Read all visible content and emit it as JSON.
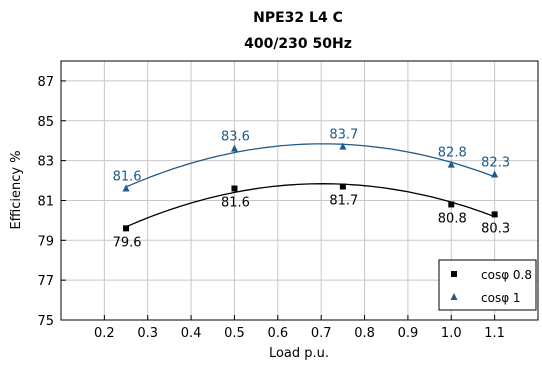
{
  "chart_data": {
    "type": "line",
    "title": "NPE32 L4 C",
    "subtitle": "400/230 50Hz",
    "xlabel": "Load p.u.",
    "ylabel": "Efficiency %",
    "xlim": [
      0.1,
      1.2
    ],
    "ylim": [
      75,
      88
    ],
    "x_ticks": [
      0.2,
      0.3,
      0.4,
      0.5,
      0.6,
      0.7,
      0.8,
      0.9,
      1.0,
      1.1
    ],
    "y_ticks": [
      75,
      77,
      79,
      81,
      83,
      85,
      87
    ],
    "x_tick_labels": [
      "0.2",
      "0.3",
      "0.4",
      "0.5",
      "0.6",
      "0.7",
      "0.8",
      "0.9",
      "1.0",
      "1.1"
    ],
    "y_tick_labels": [
      "75",
      "77",
      "79",
      "81",
      "83",
      "85",
      "87"
    ],
    "grid": true,
    "legend_position": "bottom-right",
    "series": [
      {
        "name": "cosφ 0.8",
        "marker": "square",
        "color": "#000000",
        "x": [
          0.25,
          0.5,
          0.75,
          1.0,
          1.1
        ],
        "y": [
          79.6,
          81.6,
          81.7,
          80.8,
          80.3
        ],
        "labels": [
          "79.6",
          "81.6",
          "81.7",
          "80.8",
          "80.3"
        ],
        "label_position": "below"
      },
      {
        "name": "cosφ 1",
        "marker": "triangle",
        "color": "#1f5a8a",
        "x": [
          0.25,
          0.5,
          0.75,
          1.0,
          1.1
        ],
        "y": [
          81.6,
          83.6,
          83.7,
          82.8,
          82.3
        ],
        "labels": [
          "81.6",
          "83.6",
          "83.7",
          "82.8",
          "82.3"
        ],
        "label_position": "above"
      }
    ]
  }
}
